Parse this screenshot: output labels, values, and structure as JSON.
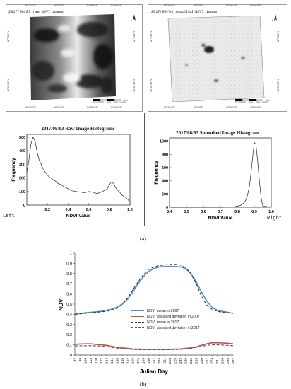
{
  "panel_a": {
    "left_map": {
      "title": "2017/08/03   raw NDVI image",
      "top_ticks": [
        "95°10'0\"E",
        "95°0'0\"E",
        "94°50'0\"E",
        "94°40'0\"E"
      ],
      "bottom_ticks": [
        "95°10'0\"E",
        "95°0'0\"E",
        "94°50'0\"E",
        "94°40'0\"E"
      ],
      "left_ticks": [
        "42°7'30\"N",
        "41°52'30\"N"
      ],
      "right_ticks": [
        "42°7'30\"N",
        "41°52'30\"N"
      ],
      "scale_label": "0 125250    500    750  1,000",
      "scale_unit": "km"
    },
    "right_map": {
      "title": "2017/08/03   smoothed NDVI image",
      "top_ticks": [
        "95°10'0\"E",
        "95°0'0\"E",
        "94°50'0\"E",
        "94°40'0\"E"
      ],
      "bottom_ticks": [
        "95°10'0\"E",
        "95°0'0\"E",
        "94°50'0\"E",
        "94°40'0\"E"
      ],
      "left_ticks": [
        "42°7'30\"N",
        "41°52'30\"N"
      ],
      "right_ticks": [
        "42°7'30\"N",
        "41°52'30\"N"
      ],
      "scale_label": "0 125250    500    750  1,000",
      "scale_unit": "km"
    },
    "side_left": "Left",
    "side_right": "Right",
    "caption": "(a)"
  },
  "panel_b": {
    "caption": "(b)"
  },
  "chart_data": [
    {
      "type": "line",
      "title": "2017/08/03 Raw Image Histograms",
      "xlabel": "NDVI Value",
      "ylabel": "Frequency",
      "xlim": [
        0,
        1
      ],
      "ylim": [
        0,
        520
      ],
      "xticks": [
        "0.2",
        "0.4",
        "0.6",
        "0.8",
        "1.0"
      ],
      "yticks": [
        "0",
        "100",
        "200",
        "300",
        "400",
        "500"
      ],
      "x": [
        0.0,
        0.02,
        0.04,
        0.06,
        0.08,
        0.1,
        0.12,
        0.14,
        0.16,
        0.18,
        0.2,
        0.22,
        0.25,
        0.28,
        0.3,
        0.33,
        0.36,
        0.4,
        0.44,
        0.48,
        0.52,
        0.56,
        0.6,
        0.64,
        0.68,
        0.72,
        0.76,
        0.78,
        0.8,
        0.82,
        0.84,
        0.86,
        0.88,
        0.9,
        0.92,
        0.94,
        0.96,
        0.98,
        1.0
      ],
      "y": [
        240,
        330,
        450,
        500,
        470,
        390,
        330,
        300,
        260,
        240,
        220,
        205,
        190,
        175,
        160,
        150,
        135,
        120,
        105,
        100,
        95,
        90,
        100,
        95,
        85,
        95,
        110,
        120,
        150,
        170,
        160,
        130,
        110,
        95,
        75,
        65,
        55,
        40,
        20
      ]
    },
    {
      "type": "line",
      "title": "2017/08/03 Smoothed Image Histogram",
      "xlabel": "NDVI Value",
      "ylabel": "Frequency",
      "xlim": [
        0.4,
        1.0
      ],
      "ylim": [
        0,
        1050
      ],
      "xticks": [
        "0.4",
        "0.5",
        "0.6",
        "0.7",
        "0.8",
        "0.9",
        "1.0"
      ],
      "yticks": [
        "0",
        "200",
        "400",
        "600",
        "800",
        "1000"
      ],
      "x": [
        0.4,
        0.5,
        0.6,
        0.7,
        0.75,
        0.78,
        0.8,
        0.82,
        0.84,
        0.85,
        0.86,
        0.87,
        0.88,
        0.89,
        0.9,
        0.91,
        0.92,
        0.93,
        0.94,
        0.95,
        1.0
      ],
      "y": [
        0,
        0,
        0,
        0,
        3,
        8,
        15,
        30,
        70,
        110,
        180,
        300,
        500,
        750,
        980,
        950,
        700,
        400,
        150,
        20,
        0
      ]
    },
    {
      "type": "line",
      "xlabel": "Julian Day",
      "ylabel": "NDVI",
      "ylim": [
        0,
        1
      ],
      "yticks": [
        "0",
        "0.1",
        "0.2",
        "0.3",
        "0.4",
        "0.5",
        "0.6",
        "0.7",
        "0.8",
        "0.9",
        "1"
      ],
      "categories": [
        "92",
        "99",
        "106",
        "113",
        "120",
        "127",
        "134",
        "141",
        "148",
        "155",
        "162",
        "169",
        "176",
        "183",
        "190",
        "197",
        "204",
        "211",
        "218",
        "225",
        "232",
        "239",
        "246",
        "253",
        "260",
        "267",
        "274",
        "281",
        "288",
        "295",
        "302"
      ],
      "legend_position": "right",
      "series": [
        {
          "name": "NDVI mean in 2007",
          "color": "#4f8fd0",
          "style": "solid",
          "values": [
            0.41,
            0.41,
            0.415,
            0.42,
            0.425,
            0.43,
            0.44,
            0.45,
            0.47,
            0.5,
            0.55,
            0.62,
            0.7,
            0.77,
            0.82,
            0.85,
            0.865,
            0.87,
            0.87,
            0.87,
            0.865,
            0.85,
            0.8,
            0.72,
            0.62,
            0.53,
            0.47,
            0.44,
            0.43,
            0.42,
            0.41
          ]
        },
        {
          "name": "NDVI standard deviation in 2007",
          "color": "#c0504d",
          "style": "solid",
          "values": [
            0.105,
            0.108,
            0.11,
            0.11,
            0.105,
            0.1,
            0.095,
            0.085,
            0.075,
            0.07,
            0.065,
            0.06,
            0.058,
            0.057,
            0.056,
            0.056,
            0.056,
            0.056,
            0.056,
            0.058,
            0.06,
            0.065,
            0.07,
            0.08,
            0.095,
            0.11,
            0.12,
            0.12,
            0.118,
            0.115,
            0.11
          ]
        },
        {
          "name": "NDVI mean in 2017",
          "color": "#333333",
          "style": "dashed",
          "values": [
            0.4,
            0.405,
            0.41,
            0.415,
            0.42,
            0.425,
            0.43,
            0.44,
            0.46,
            0.5,
            0.56,
            0.64,
            0.72,
            0.79,
            0.84,
            0.865,
            0.88,
            0.885,
            0.89,
            0.89,
            0.885,
            0.86,
            0.8,
            0.7,
            0.58,
            0.49,
            0.45,
            0.43,
            0.42,
            0.415,
            0.41
          ]
        },
        {
          "name": "NDVI standard deviation in 2017",
          "color": "#555555",
          "style": "dashed",
          "values": [
            0.09,
            0.09,
            0.092,
            0.092,
            0.09,
            0.088,
            0.082,
            0.075,
            0.068,
            0.062,
            0.058,
            0.055,
            0.053,
            0.052,
            0.052,
            0.052,
            0.052,
            0.052,
            0.053,
            0.054,
            0.056,
            0.06,
            0.066,
            0.075,
            0.085,
            0.095,
            0.1,
            0.1,
            0.098,
            0.095,
            0.092
          ]
        }
      ]
    }
  ]
}
